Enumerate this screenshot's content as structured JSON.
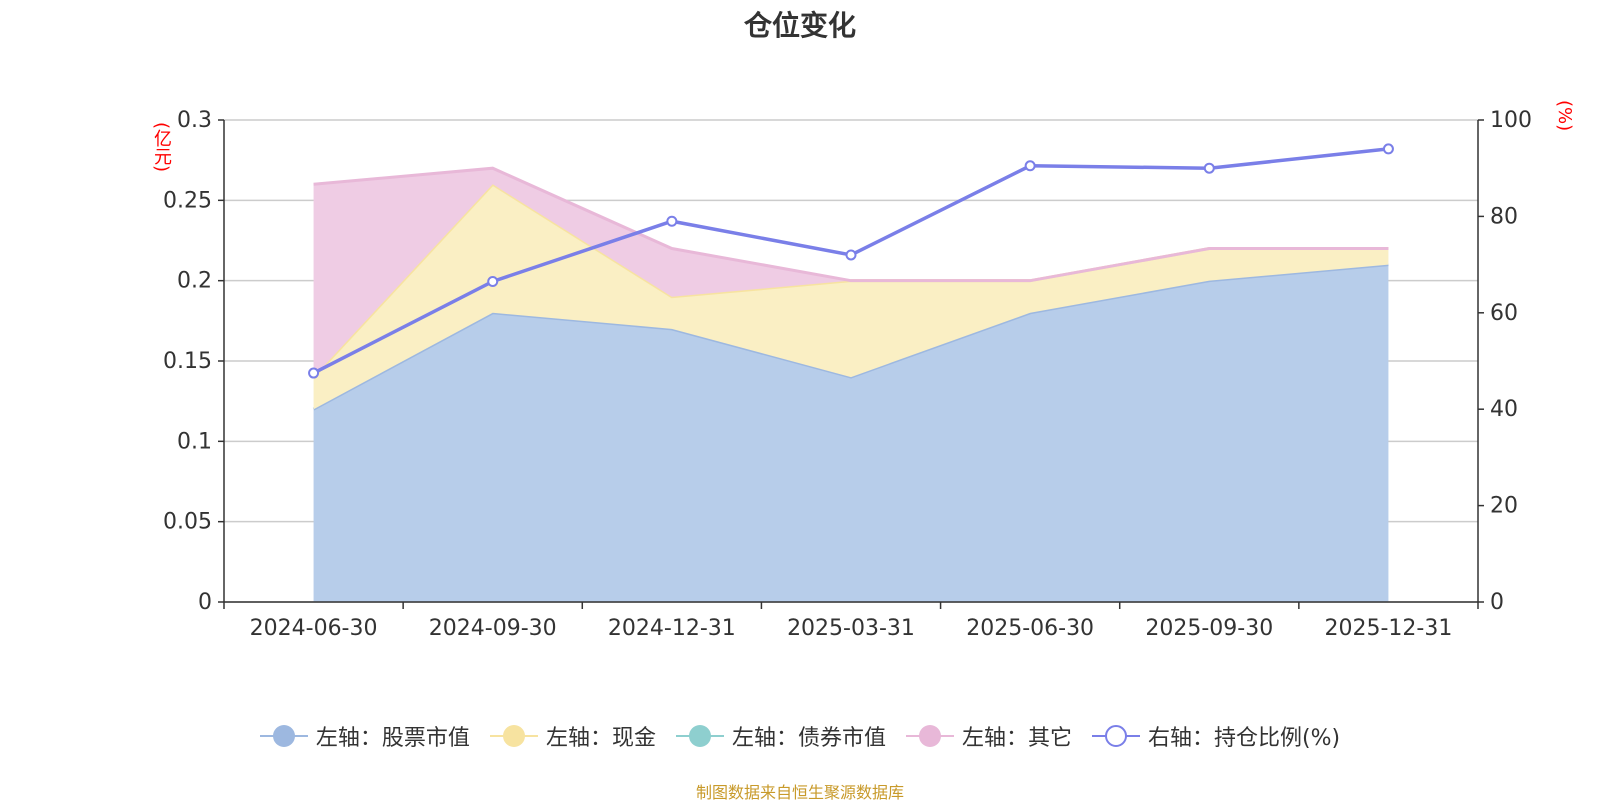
{
  "chart_data": {
    "type": "area",
    "title": "仓位变化",
    "categories": [
      "2024-06-30",
      "2024-09-30",
      "2024-12-31",
      "2025-03-31",
      "2025-06-30",
      "2025-09-30",
      "2025-12-31"
    ],
    "left_axis": {
      "unit": "(亿元)",
      "ylim": [
        0,
        0.3
      ],
      "ticks": [
        "0",
        "0.05",
        "0.1",
        "0.15",
        "0.2",
        "0.25",
        "0.3"
      ]
    },
    "right_axis": {
      "unit": "(%)",
      "ylim": [
        0,
        100
      ],
      "ticks": [
        "0",
        "20",
        "40",
        "60",
        "80",
        "100"
      ]
    },
    "series": [
      {
        "name": "左轴：股票市值",
        "axis": "left",
        "values": [
          0.12,
          0.18,
          0.17,
          0.14,
          0.18,
          0.2,
          0.21
        ],
        "color": "#9db8e0",
        "fill": "#b7cdea"
      },
      {
        "name": "左轴：现金",
        "axis": "left",
        "values": [
          0.02,
          0.08,
          0.02,
          0.06,
          0.02,
          0.02,
          0.01
        ],
        "color": "#f7e3a0",
        "fill": "#faefc4"
      },
      {
        "name": "左轴：债券市值",
        "axis": "left",
        "values": [
          0,
          0,
          0,
          0,
          0,
          0,
          0
        ],
        "color": "#8ecfcf",
        "fill": "#bfe4e4"
      },
      {
        "name": "左轴：其它",
        "axis": "left",
        "values": [
          0.12,
          0.01,
          0.03,
          0.0,
          0.0,
          0.0,
          0.0
        ],
        "color": "#e8b8d8",
        "fill": "#efcce4"
      },
      {
        "name": "右轴：持仓比例(%)",
        "axis": "right",
        "values": [
          47.5,
          66.5,
          79,
          72,
          90.5,
          90,
          94
        ],
        "color": "#7a7fe8"
      }
    ]
  },
  "source": "制图数据来自恒生聚源数据库"
}
